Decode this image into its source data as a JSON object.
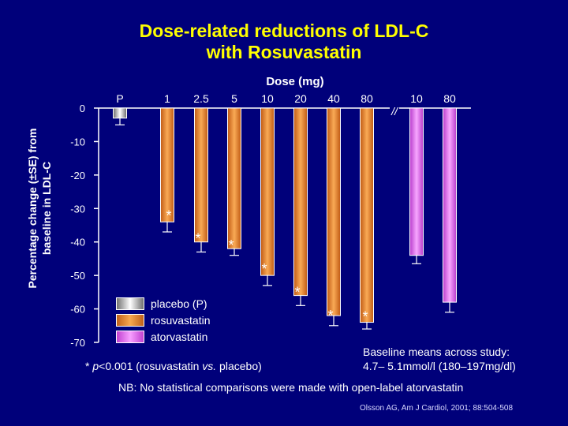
{
  "title_lines": [
    "Dose-related reductions of LDL-C",
    "with Rosuvastatin"
  ],
  "chart_data": {
    "type": "bar",
    "title": "Dose-related reductions of LDL-C with Rosuvastatin",
    "xlabel": "Dose (mg)",
    "ylabel_lines": [
      "Percentage change (±SE) from",
      "baseline in LDL-C"
    ],
    "ylim": [
      -70,
      0
    ],
    "yticks": [
      0,
      -10,
      -20,
      -30,
      -40,
      -50,
      -60,
      -70
    ],
    "categories": [
      "P",
      "1",
      "2.5",
      "5",
      "10",
      "20",
      "40",
      "80",
      "10",
      "80"
    ],
    "groups": [
      "placebo",
      "rosuvastatin",
      "rosuvastatin",
      "rosuvastatin",
      "rosuvastatin",
      "rosuvastatin",
      "rosuvastatin",
      "rosuvastatin",
      "atorvastatin",
      "atorvastatin"
    ],
    "values": [
      -3,
      -34,
      -40,
      -42,
      -50,
      -56,
      -62,
      -64,
      -44,
      -58
    ],
    "errors": [
      2,
      3,
      3,
      2,
      3,
      3,
      3,
      2,
      2.5,
      3
    ],
    "significant": [
      false,
      true,
      true,
      true,
      true,
      true,
      true,
      true,
      false,
      false
    ],
    "star_symbol": "*",
    "break_mark": "//",
    "grid": false,
    "legend_position": "bottom-left",
    "colors": {
      "placebo": "#c8c8c8",
      "rosuvastatin": "#f08a28",
      "atorvastatin": "#e46ef0",
      "axis": "#ffffff",
      "title": "#ffff00",
      "background": "#00007a"
    }
  },
  "legend": [
    {
      "key": "placebo",
      "label": "placebo (P)"
    },
    {
      "key": "rosuvastatin",
      "label": "rosuvastatin"
    },
    {
      "key": "atorvastatin",
      "label": "atorvastatin"
    }
  ],
  "footnote": {
    "star": "* ",
    "p": "p",
    "text1": "<0.001 (rosuvastatin ",
    "vs": "vs.",
    "text2": " placebo)"
  },
  "baseline_lines": [
    "Baseline means across study:",
    "4.7– 5.1mmol/l (180–197mg/dl)"
  ],
  "nb": "NB: No statistical comparisons were made with open-label atorvastatin",
  "citation": "Olsson AG, Am J Cardiol, 2001; 88:504-508"
}
